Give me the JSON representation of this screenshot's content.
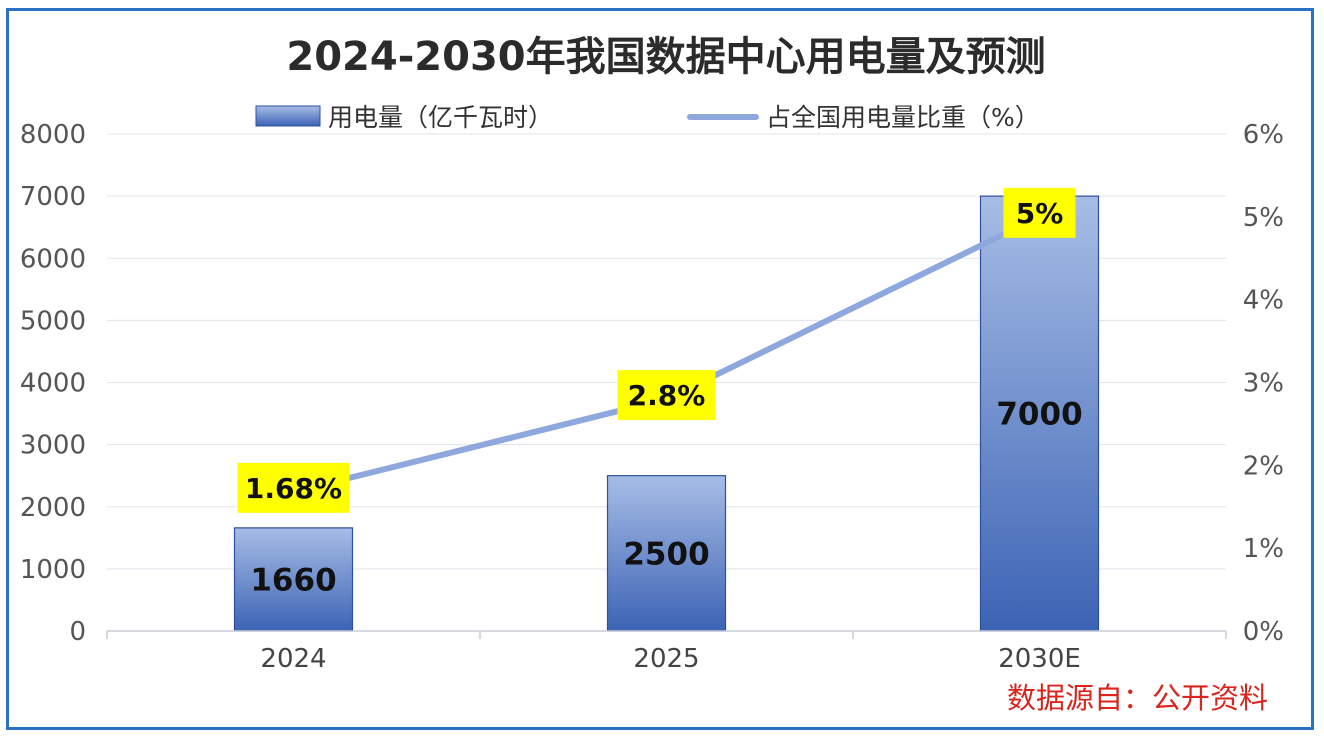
{
  "chart_data": {
    "type": "bar",
    "title": "2024-2030年我国数据中心用电量及预测",
    "categories": [
      "2024",
      "2025",
      "2030E"
    ],
    "series": [
      {
        "name": "用电量（亿千瓦时）",
        "type": "bar",
        "axis": "left",
        "values": [
          1660,
          2500,
          7000
        ],
        "labels": [
          "1660",
          "2500",
          "7000"
        ]
      },
      {
        "name": "占全国用电量比重（%）",
        "type": "line",
        "axis": "right",
        "values": [
          1.68,
          2.8,
          5
        ],
        "labels": [
          "1.68%",
          "2.8%",
          "5%"
        ]
      }
    ],
    "y_left": {
      "min": 0,
      "max": 8000,
      "ticks": [
        "0",
        "1000",
        "2000",
        "3000",
        "4000",
        "5000",
        "6000",
        "7000",
        "8000"
      ]
    },
    "y_right": {
      "min": 0,
      "max": 6,
      "ticks": [
        "0%",
        "1%",
        "2%",
        "3%",
        "4%",
        "5%",
        "6%"
      ]
    },
    "grid": true,
    "legend_position": "top",
    "colors": {
      "bar_top": "#a7bde6",
      "bar_bottom": "#3c63b4",
      "bar_border": "#2d4f9f",
      "line": "#8ea8de",
      "label_bg": "#ffff00",
      "grid": "#dfe3ea",
      "frame": "#2a73c4",
      "source": "#d9251d"
    }
  },
  "source_note": "数据源自：公开资料"
}
